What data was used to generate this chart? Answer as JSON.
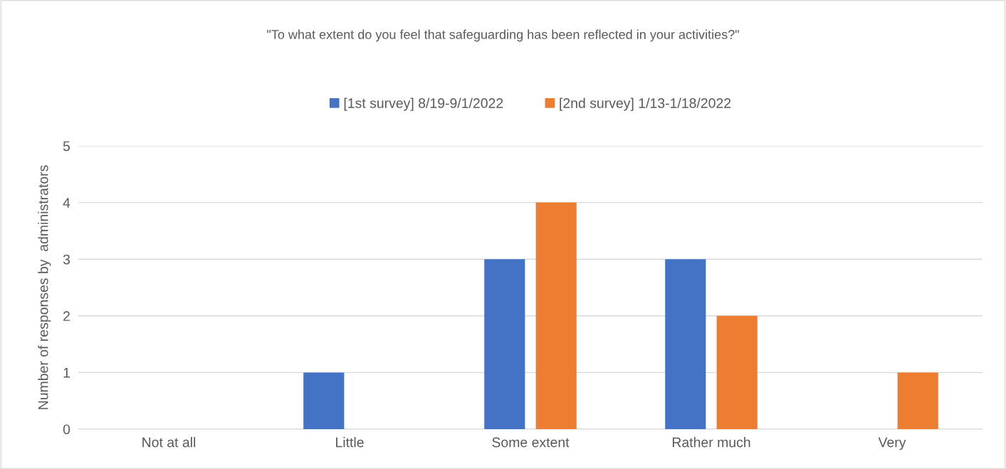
{
  "chart_data": {
    "type": "bar",
    "title": "\"To what extent do you feel that safeguarding has been reflected in your activities?\"",
    "ylabel": "Number of responses by  administrators",
    "categories": [
      "Not at all",
      "Little",
      "Some extent",
      "Rather much",
      "Very"
    ],
    "series": [
      {
        "name": "[1st survey] 8/19-9/1/2022",
        "color": "#4472c4",
        "values": [
          0,
          1,
          3,
          3,
          0
        ]
      },
      {
        "name": "[2nd survey] 1/13-1/18/2022",
        "color": "#ed7d31",
        "values": [
          0,
          0,
          4,
          2,
          1
        ]
      }
    ],
    "ylim": [
      0,
      5
    ],
    "yticks": [
      0,
      1,
      2,
      3,
      4,
      5
    ],
    "grid": "y",
    "legend": "top"
  }
}
